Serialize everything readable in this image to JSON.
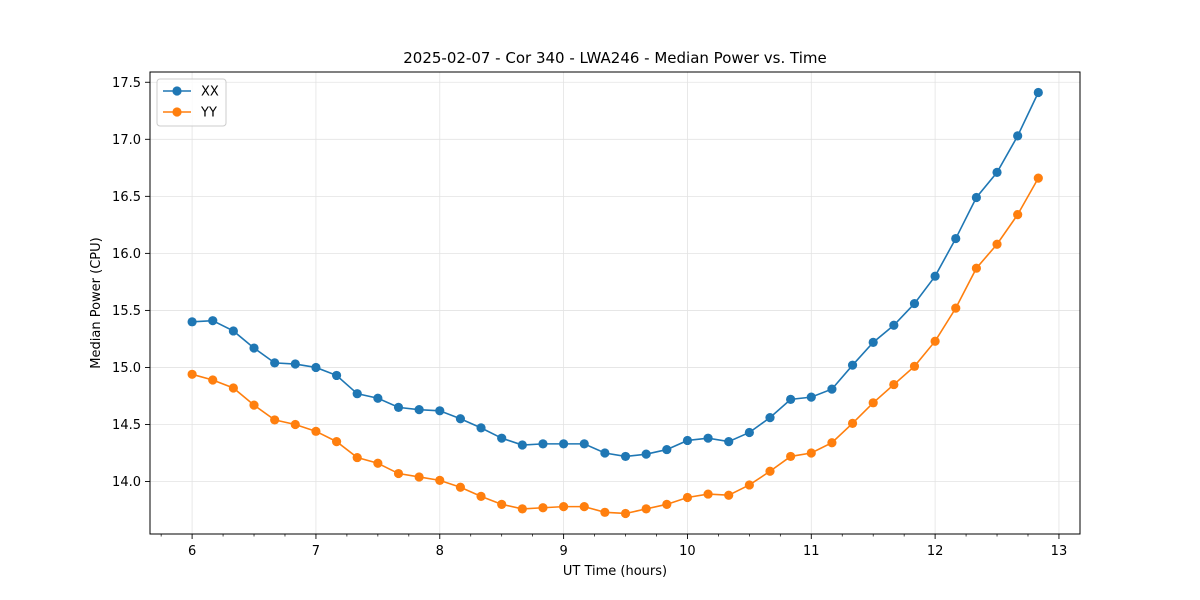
{
  "chart_data": {
    "type": "line",
    "title": "2025-02-07 - Cor 340 - LWA246 - Median Power vs. Time",
    "xlabel": "UT Time (hours)",
    "ylabel": "Median Power (CPU)",
    "xlim": [
      5.66,
      13.17
    ],
    "ylim": [
      13.54,
      17.59
    ],
    "x_ticks": [
      6,
      7,
      8,
      9,
      10,
      11,
      12,
      13
    ],
    "x_tick_labels": [
      "6",
      "7",
      "8",
      "9",
      "10",
      "11",
      "12",
      "13"
    ],
    "x_minor_step": 0.25,
    "y_ticks": [
      14.0,
      14.5,
      15.0,
      15.5,
      16.0,
      16.5,
      17.0,
      17.5
    ],
    "y_tick_labels": [
      "14.0",
      "14.5",
      "15.0",
      "15.5",
      "16.0",
      "16.5",
      "17.0",
      "17.5"
    ],
    "grid": true,
    "legend_position": "top-left",
    "x": [
      6.0,
      6.1667,
      6.3333,
      6.5,
      6.6667,
      6.8333,
      7.0,
      7.1667,
      7.3333,
      7.5,
      7.6667,
      7.8333,
      8.0,
      8.1667,
      8.3333,
      8.5,
      8.6667,
      8.8333,
      9.0,
      9.1667,
      9.3333,
      9.5,
      9.6667,
      9.8333,
      10.0,
      10.1667,
      10.3333,
      10.5,
      10.6667,
      10.8333,
      11.0,
      11.1667,
      11.3333,
      11.5,
      11.6667,
      11.8333,
      12.0,
      12.1667,
      12.3333,
      12.5,
      12.6667,
      12.8333
    ],
    "series": [
      {
        "name": "XX",
        "color": "#1f77b4",
        "values": [
          15.4,
          15.41,
          15.32,
          15.17,
          15.04,
          15.03,
          15.0,
          14.93,
          14.77,
          14.73,
          14.65,
          14.63,
          14.62,
          14.55,
          14.47,
          14.38,
          14.32,
          14.33,
          14.33,
          14.33,
          14.25,
          14.22,
          14.24,
          14.28,
          14.36,
          14.38,
          14.35,
          14.43,
          14.56,
          14.72,
          14.74,
          14.81,
          15.02,
          15.22,
          15.37,
          15.56,
          15.8,
          16.13,
          16.49,
          16.71,
          17.03,
          17.41
        ]
      },
      {
        "name": "YY",
        "color": "#ff7f0e",
        "values": [
          14.94,
          14.89,
          14.82,
          14.67,
          14.54,
          14.5,
          14.44,
          14.35,
          14.21,
          14.16,
          14.07,
          14.04,
          14.01,
          13.95,
          13.87,
          13.8,
          13.76,
          13.77,
          13.78,
          13.78,
          13.73,
          13.72,
          13.76,
          13.8,
          13.86,
          13.89,
          13.88,
          13.97,
          14.09,
          14.22,
          14.25,
          14.34,
          14.51,
          14.69,
          14.85,
          15.01,
          15.23,
          15.52,
          15.87,
          16.08,
          16.34,
          16.66
        ]
      }
    ]
  }
}
